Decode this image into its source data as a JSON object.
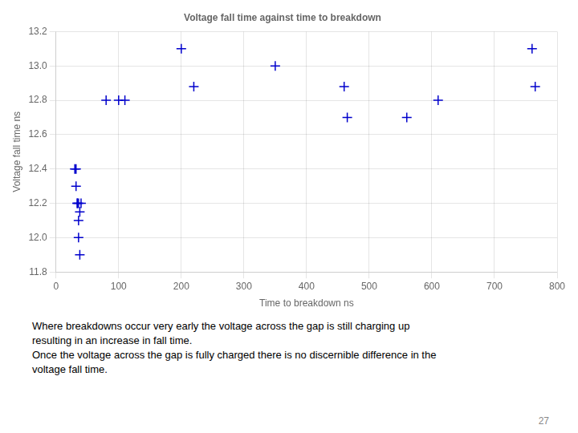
{
  "chart_data": {
    "type": "scatter",
    "title": "Voltage fall time against time to breakdown",
    "xlabel": "Time to breakdown ns",
    "ylabel": "Voltage fall time ns",
    "xlim": [
      0,
      800
    ],
    "ylim": [
      11.8,
      13.2
    ],
    "xticks": [
      0,
      100,
      200,
      300,
      400,
      500,
      600,
      700,
      800
    ],
    "yticks": [
      11.8,
      {
        "value": 12.0,
        "label": "12.0"
      },
      12.2,
      12.4,
      12.6,
      12.8,
      {
        "value": 13.0,
        "label": "13.0"
      },
      13.2
    ],
    "x": [
      30,
      32,
      34,
      36,
      38,
      32,
      34,
      36,
      38,
      40,
      36,
      80,
      100,
      110,
      200,
      220,
      350,
      460,
      465,
      560,
      610,
      760,
      765
    ],
    "values": [
      12.4,
      12.4,
      12.2,
      12.2,
      12.15,
      12.3,
      12.2,
      12.0,
      11.9,
      12.2,
      12.1,
      12.8,
      12.8,
      12.8,
      13.1,
      12.88,
      13.0,
      12.88,
      12.7,
      12.7,
      12.8,
      13.1,
      12.88
    ],
    "color": "#0000cc",
    "marker": "plus",
    "grid": true,
    "annotations": [
      "Where breakdowns occur very early the voltage across the gap is still charging up",
      "resulting in an increase in fall time.",
      "Once the voltage across the gap is fully charged there is no discernible difference in the",
      "voltage fall time.",
      "27"
    ]
  }
}
